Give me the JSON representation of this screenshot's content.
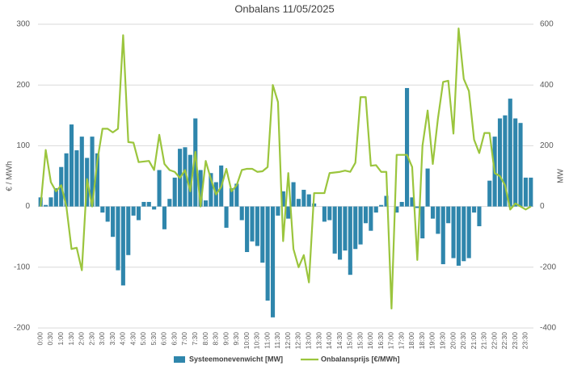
{
  "chart_data": {
    "type": "combo",
    "title": "Onbalans 11/05/2025",
    "y_label": "€ / MWh",
    "y2_label": "MW",
    "ylim": [
      -200,
      300
    ],
    "yticks": [
      -200,
      -100,
      0,
      100,
      200,
      300
    ],
    "y2lim": [
      -400,
      600
    ],
    "y2ticks": [
      -400,
      -200,
      0,
      200,
      400,
      600
    ],
    "grid": true,
    "legend": "bottom",
    "categories": [
      "0:00",
      null,
      "0:30",
      null,
      "1:00",
      null,
      "1:30",
      null,
      "2:00",
      null,
      "2:30",
      null,
      "3:00",
      null,
      "3:30",
      null,
      "4:00",
      null,
      "4:30",
      null,
      "5:00",
      null,
      "5:30",
      null,
      "6:00",
      null,
      "6:30",
      null,
      "7:00",
      null,
      "7:30",
      null,
      "8:00",
      null,
      "8:30",
      null,
      "9:00",
      null,
      "9:30",
      null,
      "10:00",
      null,
      "10:30",
      null,
      "11:00",
      null,
      "11:30",
      null,
      "12:00",
      null,
      "12:30",
      null,
      "13:00",
      null,
      "13:30",
      null,
      "14:00",
      null,
      "14:30",
      null,
      "15:00",
      null,
      "15:30",
      null,
      "16:00",
      null,
      "16:30",
      null,
      "17:00",
      null,
      "17:30",
      null,
      "18:00",
      null,
      "18:30",
      null,
      "19:00",
      null,
      "19:30",
      null,
      "20:00",
      null,
      "20:30",
      null,
      "21:00",
      null,
      "21:30",
      null,
      "22:00",
      null,
      "22:30",
      null,
      "23:00",
      null,
      "23:30",
      null
    ],
    "series": [
      {
        "name": "Systeemonevenwicht [MW]",
        "type": "bar",
        "axis": "y2",
        "color": "#2f86ac",
        "values": [
          30,
          5,
          30,
          60,
          130,
          175,
          270,
          185,
          230,
          160,
          230,
          175,
          -20,
          -50,
          -100,
          -210,
          -260,
          -160,
          -30,
          -45,
          15,
          15,
          -10,
          120,
          -75,
          25,
          95,
          190,
          195,
          170,
          290,
          120,
          20,
          110,
          80,
          135,
          -70,
          60,
          75,
          -45,
          -150,
          -115,
          -130,
          -185,
          -310,
          -365,
          -30,
          50,
          -40,
          80,
          25,
          55,
          40,
          10,
          0,
          -50,
          -45,
          -155,
          -175,
          -145,
          -225,
          -140,
          -125,
          -55,
          -80,
          -20,
          5,
          35,
          0,
          -20,
          15,
          390,
          30,
          -5,
          -105,
          125,
          -40,
          -90,
          -190,
          -55,
          -170,
          -195,
          -180,
          -170,
          -20,
          -65,
          0,
          85,
          230,
          290,
          300,
          355,
          290,
          275,
          95,
          95
        ]
      },
      {
        "name": "Onbalansprijs [€/MWh]",
        "type": "line",
        "color": "#9bc53d",
        "values": [
          0,
          93,
          40,
          25,
          35,
          0,
          -70,
          -68,
          -105,
          45,
          0,
          75,
          128,
          128,
          122,
          128,
          282,
          106,
          105,
          73,
          74,
          75,
          60,
          118,
          70,
          60,
          57,
          47,
          60,
          25,
          90,
          0,
          75,
          45,
          20,
          32,
          62,
          25,
          35,
          60,
          62,
          62,
          57,
          58,
          65,
          200,
          172,
          -57,
          55,
          -70,
          -100,
          -80,
          -125,
          22,
          22,
          22,
          55,
          56,
          57,
          59,
          57,
          72,
          180,
          180,
          67,
          68,
          57,
          57,
          -168,
          85,
          85,
          85,
          65,
          -88,
          100,
          158,
          70,
          145,
          205,
          207,
          120,
          293,
          210,
          190,
          110,
          88,
          121,
          121,
          55,
          50,
          35,
          -5,
          5,
          0,
          -5,
          0
        ]
      }
    ]
  }
}
